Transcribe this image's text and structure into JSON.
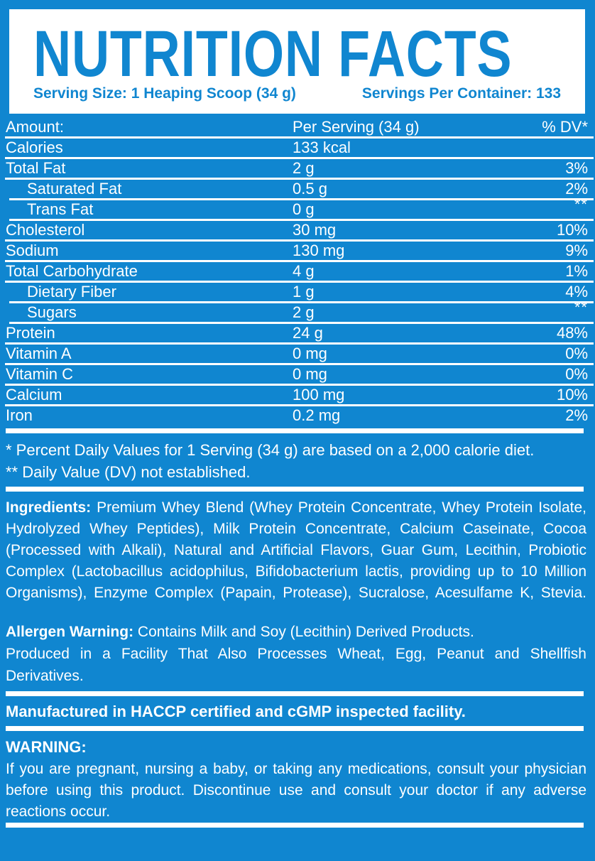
{
  "colors": {
    "background_blue": "#1086D0",
    "panel_white": "#FFFFFF",
    "text_white": "#FFFFFF"
  },
  "header": {
    "title": "NUTRITION FACTS",
    "serving_size": "Serving Size: 1 Heaping Scoop (34 g)",
    "servings_per_container": "Servings Per Container: 133"
  },
  "table": {
    "rows": [
      {
        "label": "Amount:",
        "value": "Per Serving (34 g)",
        "dv": "% DV*",
        "sub": false
      },
      {
        "label": "Calories",
        "value": "133 kcal",
        "dv": "",
        "sub": false
      },
      {
        "label": "Total Fat",
        "value": "2 g",
        "dv": "3%",
        "sub": false
      },
      {
        "label": "Saturated Fat",
        "value": "0.5 g",
        "dv": "2%",
        "sub": true
      },
      {
        "label": "Trans Fat",
        "value": "0 g",
        "dv": "**",
        "sub": true
      },
      {
        "label": "Cholesterol",
        "value": "30 mg",
        "dv": "10%",
        "sub": false
      },
      {
        "label": "Sodium",
        "value": "130 mg",
        "dv": "9%",
        "sub": false
      },
      {
        "label": "Total Carbohydrate",
        "value": "4 g",
        "dv": "1%",
        "sub": false
      },
      {
        "label": "Dietary Fiber",
        "value": "1 g",
        "dv": "4%",
        "sub": true
      },
      {
        "label": "Sugars",
        "value": "2 g",
        "dv": "**",
        "sub": true
      },
      {
        "label": "Protein",
        "value": "24 g",
        "dv": "48%",
        "sub": false
      },
      {
        "label": "Vitamin A",
        "value": "0 mg",
        "dv": "0%",
        "sub": false
      },
      {
        "label": "Vitamin C",
        "value": "0 mg",
        "dv": "0%",
        "sub": false
      },
      {
        "label": "Calcium",
        "value": "100 mg",
        "dv": "10%",
        "sub": false
      },
      {
        "label": "Iron",
        "value": "0.2 mg",
        "dv": "2%",
        "sub": false
      }
    ]
  },
  "footnotes": [
    "* Percent Daily Values for 1 Serving (34 g) are based on a 2,000 calorie diet.",
    "** Daily Value (DV) not established."
  ],
  "ingredients": {
    "label": "Ingredients:",
    "text": "Premium Whey Blend (Whey Protein Concentrate, Whey Protein Isolate, Hydrolyzed Whey Peptides), Milk Protein Concentrate, Calcium Caseinate, Cocoa (Processed with Alkali), Natural and Artificial Flavors, Guar Gum, Lecithin, Probiotic Complex (Lactobacillus acidophilus, Bifidobacterium lactis, providing up to 10 Million Organisms), Enzyme Complex (Papain, Protease), Sucralose, Acesulfame K, Stevia."
  },
  "allergen": {
    "label": "Allergen Warning:",
    "text": "Contains Milk and Soy (Lecithin) Derived Products.",
    "line2": "Produced in a Facility That Also Processes Wheat, Egg, Peanut and Shellfish Derivatives."
  },
  "manufactured": "Manufactured in HACCP certified and cGMP inspected facility.",
  "warning": {
    "label": "WARNING:",
    "text": "If you are pregnant, nursing a baby, or taking any medications, consult your physician before using this product. Discontinue use and consult your doctor if any adverse reactions occur."
  }
}
